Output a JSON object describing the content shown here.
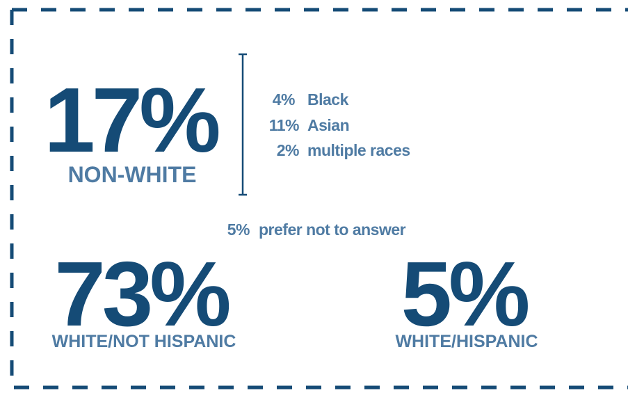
{
  "non_white": {
    "percent": "17%",
    "label": "NON-WHITE",
    "breakdown": [
      {
        "percent": "4%",
        "label": "Black"
      },
      {
        "percent": "11%",
        "label": "Asian"
      },
      {
        "percent": "2%",
        "label": "multiple races"
      }
    ]
  },
  "prefer_not": {
    "percent": "5%",
    "label": "prefer not to answer"
  },
  "white_not_hispanic": {
    "percent": "73%",
    "label": "WHITE/NOT HISPANIC"
  },
  "white_hispanic": {
    "percent": "5%",
    "label": "WHITE/HISPANIC"
  }
}
